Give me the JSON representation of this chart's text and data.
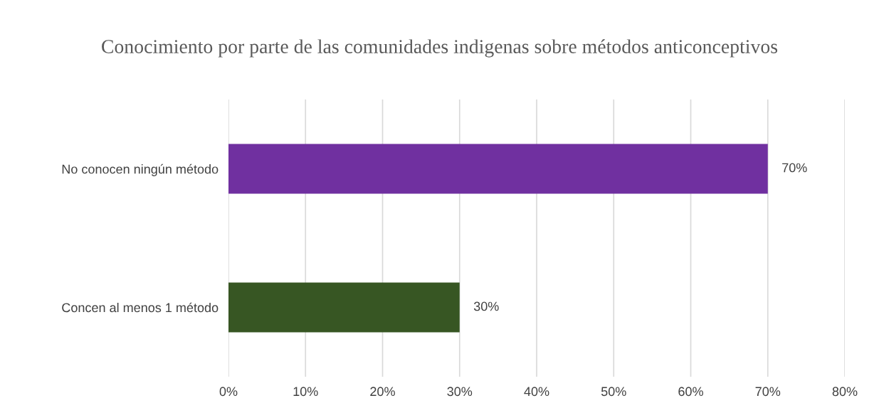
{
  "chart_data": {
    "type": "bar",
    "orientation": "horizontal",
    "title": "Conocimiento por parte de las comunidades indigenas sobre métodos anticonceptivos",
    "categories": [
      "No conocen ningún método",
      "Concen al menos 1 método"
    ],
    "values": [
      70,
      30
    ],
    "colors": [
      "#7030a0",
      "#375623"
    ],
    "value_labels": [
      "70%",
      "30%"
    ],
    "xlim": [
      0,
      80
    ],
    "xticks": [
      {
        "value": 0,
        "label": "0%"
      },
      {
        "value": 10,
        "label": "10%"
      },
      {
        "value": 20,
        "label": "20%"
      },
      {
        "value": 30,
        "label": "30%"
      },
      {
        "value": 40,
        "label": "40%"
      },
      {
        "value": 50,
        "label": "50%"
      },
      {
        "value": 60,
        "label": "60%"
      },
      {
        "value": 70,
        "label": "70%"
      },
      {
        "value": 80,
        "label": "80%"
      }
    ],
    "grid": "x",
    "legend": false
  }
}
